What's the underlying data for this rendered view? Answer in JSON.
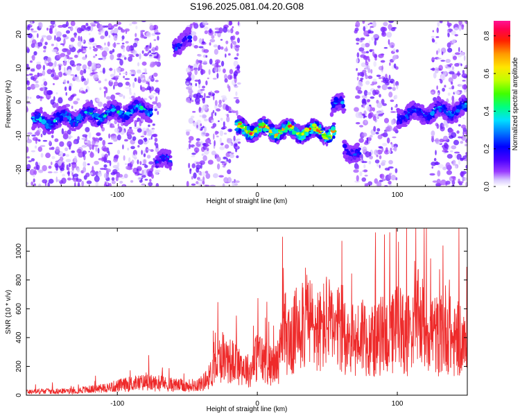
{
  "title": "S196.2025.081.04.20.G08",
  "colors": {
    "snr_line": "#ee2a2a",
    "spectrogram_low": "#b9a0f5",
    "spectrogram_mid": "#5a14e6",
    "colormap": [
      "#ffffff",
      "#d8c8ff",
      "#8a2be2",
      "#3f00ff",
      "#0000ff",
      "#0066ff",
      "#00ccff",
      "#00ff99",
      "#33ff00",
      "#ccff00",
      "#ffee00",
      "#ff9900",
      "#ff0000",
      "#ff0066",
      "#ff1493"
    ]
  },
  "chart_data": [
    {
      "type": "heatmap",
      "xlabel": "Height of straight line (km)",
      "ylabel": "Frequency (Hz)",
      "xlim": [
        -165,
        150
      ],
      "ylim": [
        -25,
        24
      ],
      "x_ticks": [
        "-100",
        "0",
        "100"
      ],
      "y_ticks": [
        "-20",
        "-10",
        "0",
        "10",
        "20"
      ],
      "colorbar": {
        "label": "Normalized spectral amplitude",
        "range": [
          0,
          0.88
        ],
        "ticks": [
          "0.0",
          "0.2",
          "0.4",
          "0.6",
          "0.8"
        ]
      },
      "segments": [
        {
          "x": [
            -160,
            -75
          ],
          "f_center": [
            -6,
            -2
          ],
          "max_amplitude": 0.45
        },
        {
          "x": [
            -72,
            -62
          ],
          "f_center": [
            -18,
            -17
          ],
          "max_amplitude": 0.3
        },
        {
          "x": [
            -60,
            -48
          ],
          "f_center": [
            17,
            18
          ],
          "max_amplitude": 0.3
        },
        {
          "x": [
            -15,
            55
          ],
          "f_center": [
            -8,
            -9
          ],
          "max_amplitude": 0.88
        },
        {
          "x": [
            53,
            62
          ],
          "f_center": [
            -1,
            -1
          ],
          "max_amplitude": 0.35
        },
        {
          "x": [
            62,
            73
          ],
          "f_center": [
            -14,
            -15
          ],
          "max_amplitude": 0.3
        },
        {
          "x": [
            100,
            150
          ],
          "f_center": [
            -4,
            -2
          ],
          "max_amplitude": 0.4
        }
      ]
    },
    {
      "type": "line",
      "xlabel": "Height of straight line (km)",
      "ylabel": "SNR (10 * v/v)",
      "xlim": [
        -165,
        150
      ],
      "ylim": [
        0,
        1160
      ],
      "x_ticks": [
        "-100",
        "0",
        "100"
      ],
      "y_ticks": [
        "0",
        "200",
        "400",
        "600",
        "800",
        "1000"
      ],
      "series": [
        {
          "x": [
            -165,
            -150,
            -140,
            -130,
            -120,
            -110,
            -100,
            -90,
            -80,
            -70,
            -60,
            -50,
            -40,
            -35,
            -30,
            -25,
            -20,
            -15,
            -10,
            -5,
            0,
            5,
            10,
            15,
            20,
            25,
            30,
            35,
            40,
            45,
            50,
            55,
            60,
            65,
            70,
            75,
            80,
            85,
            90,
            95,
            100,
            105,
            110,
            115,
            120,
            125,
            130,
            135,
            140,
            145,
            150
          ],
          "values": [
            30,
            35,
            35,
            40,
            50,
            60,
            80,
            100,
            110,
            100,
            90,
            80,
            100,
            150,
            250,
            350,
            300,
            280,
            250,
            200,
            350,
            300,
            250,
            300,
            550,
            450,
            700,
            650,
            600,
            550,
            650,
            500,
            600,
            500,
            450,
            550,
            500,
            450,
            550,
            500,
            600,
            550,
            500,
            650,
            600,
            550,
            500,
            600,
            450,
            500,
            350
          ]
        }
      ]
    }
  ]
}
